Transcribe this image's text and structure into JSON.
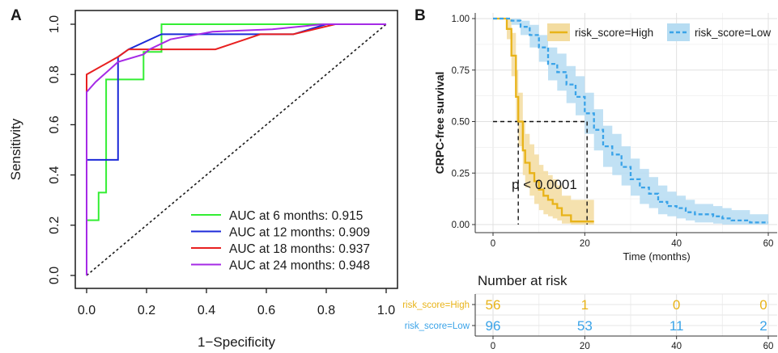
{
  "chart_data": [
    {
      "type": "line",
      "panel_label": "A",
      "xlabel": "1−Specificity",
      "ylabel": "Sensitivity",
      "xlim": [
        0,
        1
      ],
      "ylim": [
        0,
        1
      ],
      "xticks": [
        "0.0",
        "0.2",
        "0.4",
        "0.6",
        "0.8",
        "1.0"
      ],
      "yticks": [
        "0.0",
        "0.2",
        "0.4",
        "0.6",
        "0.8",
        "1.0"
      ],
      "grid": false,
      "legend_position": "bottom-right",
      "reference_line": "diagonal-dotted",
      "series": [
        {
          "name": "AUC at 6 months: 0.915",
          "color": "#33ee33",
          "points": [
            [
              0,
              0
            ],
            [
              0,
              0.22
            ],
            [
              0.04,
              0.22
            ],
            [
              0.04,
              0.33
            ],
            [
              0.065,
              0.33
            ],
            [
              0.065,
              0.78
            ],
            [
              0.19,
              0.78
            ],
            [
              0.19,
              0.89
            ],
            [
              0.25,
              0.89
            ],
            [
              0.25,
              1
            ],
            [
              1,
              1
            ]
          ]
        },
        {
          "name": "AUC at 12 months: 0.909",
          "color": "#1c2ad8",
          "points": [
            [
              0,
              0
            ],
            [
              0,
              0.46
            ],
            [
              0.105,
              0.46
            ],
            [
              0.105,
              0.87
            ],
            [
              0.14,
              0.9
            ],
            [
              0.25,
              0.96
            ],
            [
              0.69,
              0.96
            ],
            [
              0.8,
              1
            ],
            [
              1,
              1
            ]
          ]
        },
        {
          "name": "AUC at 18 months: 0.937",
          "color": "#e82020",
          "points": [
            [
              0,
              0
            ],
            [
              0,
              0.8
            ],
            [
              0.105,
              0.87
            ],
            [
              0.14,
              0.9
            ],
            [
              0.43,
              0.9
            ],
            [
              0.53,
              0.94
            ],
            [
              0.58,
              0.96
            ],
            [
              0.69,
              0.96
            ],
            [
              0.83,
              1
            ],
            [
              1,
              1
            ]
          ]
        },
        {
          "name": "AUC at 24 months: 0.948",
          "color": "#a52ae6",
          "points": [
            [
              0,
              0
            ],
            [
              0,
              0.73
            ],
            [
              0.03,
              0.77
            ],
            [
              0.105,
              0.85
            ],
            [
              0.19,
              0.88
            ],
            [
              0.21,
              0.9
            ],
            [
              0.28,
              0.94
            ],
            [
              0.42,
              0.97
            ],
            [
              0.62,
              0.98
            ],
            [
              0.79,
              1
            ],
            [
              1,
              1
            ]
          ]
        }
      ]
    },
    {
      "type": "line",
      "panel_label": "B",
      "xlabel": "Time (months)",
      "ylabel": "CRPC-free survival",
      "xlim": [
        0,
        60
      ],
      "ylim": [
        0,
        1
      ],
      "xticks": [
        "0",
        "20",
        "40",
        "60"
      ],
      "yticks": [
        "0.00",
        "0.25",
        "0.50",
        "0.75",
        "1.00"
      ],
      "grid": true,
      "legend_position": "top",
      "annotation": "p < 0.0001",
      "median_lines": [
        {
          "x": 5.5,
          "y": 0.5
        },
        {
          "x": 20.5,
          "y": 0.5
        }
      ],
      "series": [
        {
          "name": "risk_score=High",
          "color": "#e8b318",
          "fill": "#f3dca0",
          "linestyle": "solid",
          "x": [
            0,
            3,
            4,
            5,
            5.5,
            6.5,
            7,
            8,
            9,
            10,
            11,
            12,
            13,
            14,
            15,
            17,
            22
          ],
          "y": [
            1.0,
            0.95,
            0.82,
            0.62,
            0.5,
            0.36,
            0.3,
            0.25,
            0.21,
            0.17,
            0.14,
            0.12,
            0.1,
            0.08,
            0.045,
            0.015,
            0.015
          ],
          "lower": [
            1.0,
            0.9,
            0.72,
            0.5,
            0.38,
            0.24,
            0.18,
            0.14,
            0.1,
            0.07,
            0.05,
            0.04,
            0.03,
            0.02,
            0.005,
            0.0,
            0.0
          ],
          "upper": [
            1.0,
            1.0,
            0.93,
            0.75,
            0.64,
            0.5,
            0.44,
            0.39,
            0.34,
            0.29,
            0.26,
            0.24,
            0.22,
            0.19,
            0.14,
            0.12,
            0.12
          ]
        },
        {
          "name": "risk_score=Low",
          "color": "#3aa3e8",
          "fill": "#b6dcf2",
          "linestyle": "dashed",
          "x": [
            0,
            2,
            4,
            6,
            8,
            10,
            12,
            14,
            16,
            18,
            20,
            22,
            24,
            26,
            28,
            30,
            32,
            34,
            36,
            38,
            40,
            42,
            44,
            46,
            48,
            50,
            52,
            56,
            60
          ],
          "y": [
            1.0,
            1.0,
            0.99,
            0.96,
            0.92,
            0.86,
            0.78,
            0.74,
            0.68,
            0.62,
            0.54,
            0.46,
            0.38,
            0.34,
            0.28,
            0.22,
            0.18,
            0.15,
            0.11,
            0.09,
            0.08,
            0.06,
            0.05,
            0.05,
            0.04,
            0.03,
            0.02,
            0.01,
            0.01
          ],
          "lower": [
            1.0,
            1.0,
            0.97,
            0.92,
            0.86,
            0.79,
            0.7,
            0.65,
            0.59,
            0.53,
            0.44,
            0.36,
            0.28,
            0.24,
            0.19,
            0.14,
            0.1,
            0.08,
            0.05,
            0.04,
            0.03,
            0.02,
            0.01,
            0.01,
            0.005,
            0.0,
            0.0,
            0.0,
            0.0
          ],
          "upper": [
            1.0,
            1.0,
            1.0,
            0.99,
            0.97,
            0.92,
            0.86,
            0.83,
            0.77,
            0.72,
            0.64,
            0.56,
            0.48,
            0.44,
            0.38,
            0.32,
            0.27,
            0.23,
            0.19,
            0.16,
            0.14,
            0.12,
            0.1,
            0.1,
            0.09,
            0.08,
            0.07,
            0.05,
            0.05
          ]
        }
      ]
    },
    {
      "type": "table",
      "title": "Number at risk",
      "columns": [
        "0",
        "20",
        "40",
        "60"
      ],
      "rows": [
        {
          "label": "risk_score=High",
          "color": "#e8b318",
          "values": [
            "56",
            "1",
            "0",
            "0"
          ]
        },
        {
          "label": "risk_score=Low",
          "color": "#3aa3e8",
          "values": [
            "96",
            "53",
            "11",
            "2"
          ]
        }
      ]
    }
  ]
}
